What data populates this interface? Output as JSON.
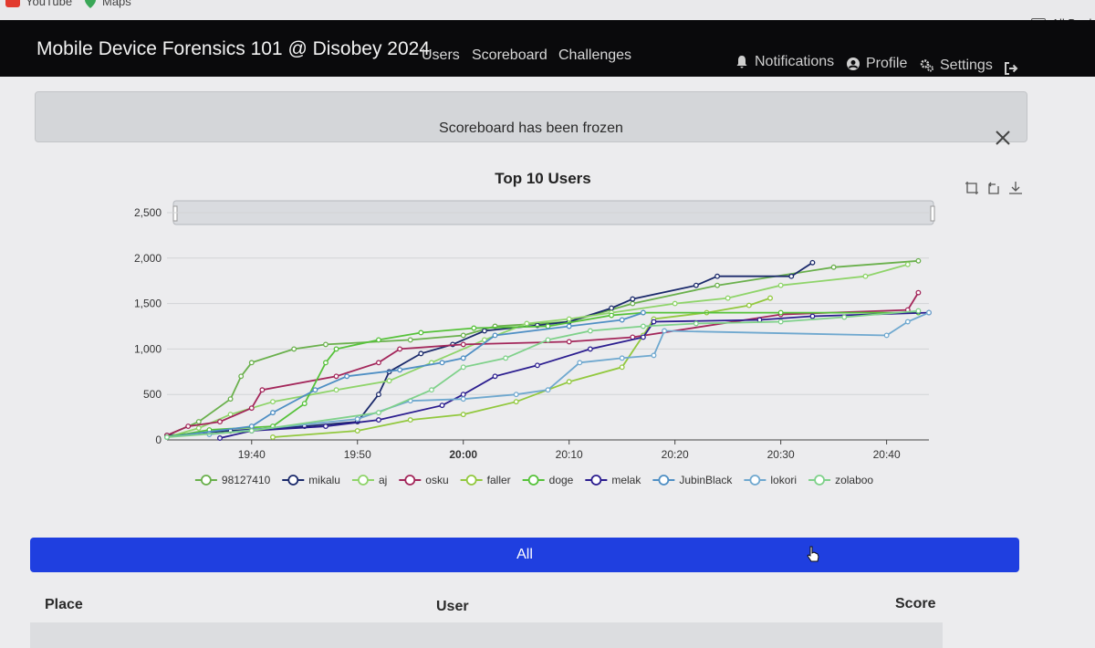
{
  "bookmarks": {
    "items": [
      {
        "label": "YouTube",
        "icon": "youtube-icon"
      },
      {
        "label": "Maps",
        "icon": "maps-icon"
      }
    ],
    "all_label": "All Book"
  },
  "navbar": {
    "brand": "Mobile Device Forensics 101 @ Disobey 2024",
    "links": [
      "Users",
      "Scoreboard",
      "Challenges"
    ],
    "notifications": "Notifications",
    "profile": "Profile",
    "settings": "Settings"
  },
  "alert": {
    "message": "Scoreboard has been frozen"
  },
  "buttons": {
    "all": "All"
  },
  "table": {
    "headers": [
      "Place",
      "User",
      "Score"
    ]
  },
  "colors": {
    "navbar_bg": "#0a0a0c",
    "button_blue": "#1f3fe0"
  },
  "chart_data": {
    "type": "line",
    "title": "Top 10 Users",
    "x_ticks": [
      "19:40",
      "19:50",
      "20:00",
      "20:10",
      "20:20",
      "20:30",
      "20:40"
    ],
    "x_range": [
      "19:32",
      "20:44"
    ],
    "ylim": [
      0,
      2500
    ],
    "y_ticks": [
      0,
      500,
      1000,
      1500,
      2000,
      2500
    ],
    "grid": true,
    "legend_position": "bottom",
    "series": [
      {
        "name": "98127410",
        "color": "#6ab04c",
        "points": [
          [
            "19:32",
            50
          ],
          [
            "19:35",
            200
          ],
          [
            "19:38",
            450
          ],
          [
            "19:39",
            700
          ],
          [
            "19:40",
            850
          ],
          [
            "19:44",
            1000
          ],
          [
            "19:47",
            1050
          ],
          [
            "19:55",
            1100
          ],
          [
            "20:00",
            1150
          ],
          [
            "20:03",
            1250
          ],
          [
            "20:10",
            1300
          ],
          [
            "20:16",
            1500
          ],
          [
            "20:24",
            1700
          ],
          [
            "20:35",
            1900
          ],
          [
            "20:43",
            1970
          ]
        ]
      },
      {
        "name": "mikalu",
        "color": "#1b2a6b",
        "points": [
          [
            "19:32",
            50
          ],
          [
            "19:38",
            100
          ],
          [
            "19:45",
            150
          ],
          [
            "19:50",
            200
          ],
          [
            "19:52",
            500
          ],
          [
            "19:53",
            750
          ],
          [
            "19:56",
            950
          ],
          [
            "19:59",
            1050
          ],
          [
            "20:02",
            1200
          ],
          [
            "20:07",
            1260
          ],
          [
            "20:10",
            1300
          ],
          [
            "20:14",
            1450
          ],
          [
            "20:16",
            1550
          ],
          [
            "20:22",
            1700
          ],
          [
            "20:24",
            1800
          ],
          [
            "20:31",
            1800
          ],
          [
            "20:33",
            1950
          ]
        ]
      },
      {
        "name": "aj",
        "color": "#8fd46a",
        "points": [
          [
            "19:32",
            30
          ],
          [
            "19:35",
            130
          ],
          [
            "19:38",
            280
          ],
          [
            "19:42",
            420
          ],
          [
            "19:48",
            550
          ],
          [
            "19:53",
            650
          ],
          [
            "19:57",
            850
          ],
          [
            "20:02",
            1100
          ],
          [
            "20:06",
            1280
          ],
          [
            "20:10",
            1330
          ],
          [
            "20:14",
            1400
          ],
          [
            "20:20",
            1500
          ],
          [
            "20:25",
            1560
          ],
          [
            "20:30",
            1700
          ],
          [
            "20:38",
            1800
          ],
          [
            "20:42",
            1930
          ]
        ]
      },
      {
        "name": "osku",
        "color": "#a3265a",
        "points": [
          [
            "19:32",
            50
          ],
          [
            "19:34",
            150
          ],
          [
            "19:37",
            200
          ],
          [
            "19:40",
            350
          ],
          [
            "19:41",
            550
          ],
          [
            "19:48",
            700
          ],
          [
            "19:52",
            850
          ],
          [
            "19:54",
            1000
          ],
          [
            "20:00",
            1050
          ],
          [
            "20:10",
            1080
          ],
          [
            "20:16",
            1130
          ],
          [
            "20:30",
            1380
          ],
          [
            "20:42",
            1430
          ],
          [
            "20:43",
            1620
          ]
        ]
      },
      {
        "name": "faller",
        "color": "#92c83e",
        "points": [
          [
            "19:42",
            30
          ],
          [
            "19:50",
            100
          ],
          [
            "19:55",
            220
          ],
          [
            "20:00",
            280
          ],
          [
            "20:05",
            420
          ],
          [
            "20:10",
            640
          ],
          [
            "20:15",
            800
          ],
          [
            "20:17",
            1150
          ],
          [
            "20:18",
            1330
          ],
          [
            "20:23",
            1400
          ],
          [
            "20:27",
            1480
          ],
          [
            "20:29",
            1560
          ]
        ]
      },
      {
        "name": "doge",
        "color": "#56c23a",
        "points": [
          [
            "19:32",
            30
          ],
          [
            "19:36",
            110
          ],
          [
            "19:42",
            150
          ],
          [
            "19:45",
            400
          ],
          [
            "19:47",
            850
          ],
          [
            "19:48",
            1000
          ],
          [
            "19:52",
            1100
          ],
          [
            "19:56",
            1180
          ],
          [
            "20:01",
            1230
          ],
          [
            "20:08",
            1250
          ],
          [
            "20:14",
            1370
          ],
          [
            "20:17",
            1400
          ],
          [
            "20:30",
            1400
          ],
          [
            "20:43",
            1400
          ]
        ]
      },
      {
        "name": "melak",
        "color": "#2b1d8f",
        "points": [
          [
            "19:37",
            20
          ],
          [
            "19:40",
            100
          ],
          [
            "19:47",
            150
          ],
          [
            "19:52",
            220
          ],
          [
            "19:58",
            380
          ],
          [
            "20:00",
            500
          ],
          [
            "20:03",
            700
          ],
          [
            "20:07",
            820
          ],
          [
            "20:12",
            1000
          ],
          [
            "20:17",
            1130
          ],
          [
            "20:18",
            1300
          ],
          [
            "20:28",
            1320
          ],
          [
            "20:33",
            1360
          ],
          [
            "20:44",
            1400
          ]
        ]
      },
      {
        "name": "JubinBlack",
        "color": "#4f8fc4",
        "points": [
          [
            "19:32",
            30
          ],
          [
            "19:40",
            150
          ],
          [
            "19:42",
            300
          ],
          [
            "19:46",
            550
          ],
          [
            "19:49",
            700
          ],
          [
            "19:54",
            770
          ],
          [
            "19:58",
            850
          ],
          [
            "20:00",
            900
          ],
          [
            "20:03",
            1150
          ],
          [
            "20:10",
            1250
          ],
          [
            "20:15",
            1320
          ],
          [
            "20:17",
            1400
          ]
        ]
      },
      {
        "name": "lokori",
        "color": "#6fa8cf",
        "points": [
          [
            "19:36",
            60
          ],
          [
            "19:50",
            230
          ],
          [
            "19:55",
            430
          ],
          [
            "20:00",
            450
          ],
          [
            "20:05",
            500
          ],
          [
            "20:08",
            550
          ],
          [
            "20:11",
            850
          ],
          [
            "20:15",
            900
          ],
          [
            "20:18",
            930
          ],
          [
            "20:19",
            1200
          ],
          [
            "20:40",
            1150
          ],
          [
            "20:42",
            1300
          ],
          [
            "20:44",
            1400
          ]
        ]
      },
      {
        "name": "zolaboo",
        "color": "#7fd18a",
        "points": [
          [
            "19:32",
            30
          ],
          [
            "19:40",
            100
          ],
          [
            "19:52",
            300
          ],
          [
            "19:57",
            550
          ],
          [
            "20:00",
            800
          ],
          [
            "20:04",
            900
          ],
          [
            "20:08",
            1100
          ],
          [
            "20:12",
            1200
          ],
          [
            "20:17",
            1250
          ],
          [
            "20:22",
            1280
          ],
          [
            "20:30",
            1300
          ],
          [
            "20:36",
            1350
          ],
          [
            "20:43",
            1420
          ]
        ]
      }
    ]
  }
}
